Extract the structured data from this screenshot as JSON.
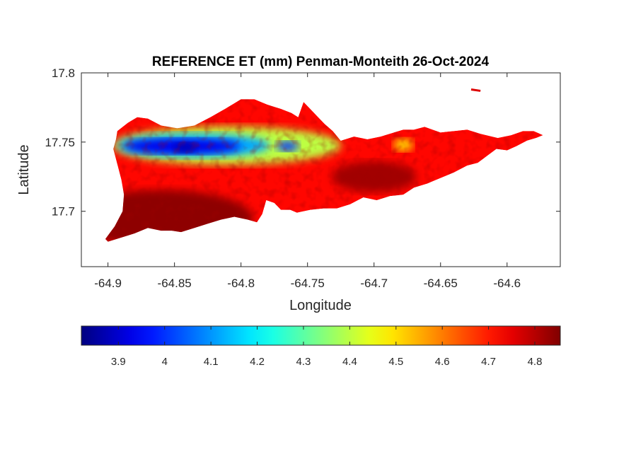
{
  "chart_data": {
    "type": "heatmap",
    "title": "REFERENCE ET (mm) Penman-Monteith 26-Oct-2024",
    "xlabel": "Longitude",
    "ylabel": "Latitude",
    "xlim": [
      -64.92,
      -64.56
    ],
    "ylim": [
      17.66,
      17.8
    ],
    "xticks": [
      -64.9,
      -64.85,
      -64.8,
      -64.75,
      -64.7,
      -64.65,
      -64.6
    ],
    "xtick_labels": [
      "-64.9",
      "-64.85",
      "-64.8",
      "-64.75",
      "-64.7",
      "-64.65",
      "-64.6"
    ],
    "yticks": [
      17.7,
      17.75,
      17.8
    ],
    "ytick_labels": [
      "17.7",
      "17.75",
      "17.8"
    ],
    "grid": false,
    "colormap": "jet",
    "colorbar": {
      "location": "bottom",
      "range": [
        3.82,
        4.855
      ],
      "ticks": [
        3.9,
        4.0,
        4.1,
        4.2,
        4.3,
        4.4,
        4.5,
        4.6,
        4.7,
        4.8
      ],
      "tick_labels": [
        "3.9",
        "4",
        "4.1",
        "4.2",
        "4.3",
        "4.4",
        "4.5",
        "4.6",
        "4.7",
        "4.8"
      ]
    },
    "island_outline": [
      [
        -64.893,
        17.758
      ],
      [
        -64.885,
        17.764
      ],
      [
        -64.878,
        17.768
      ],
      [
        -64.87,
        17.767
      ],
      [
        -64.86,
        17.762
      ],
      [
        -64.848,
        17.76
      ],
      [
        -64.835,
        17.762
      ],
      [
        -64.823,
        17.768
      ],
      [
        -64.812,
        17.774
      ],
      [
        -64.8,
        17.781
      ],
      [
        -64.79,
        17.781
      ],
      [
        -64.78,
        17.777
      ],
      [
        -64.77,
        17.774
      ],
      [
        -64.762,
        17.771
      ],
      [
        -64.757,
        17.768
      ],
      [
        -64.753,
        17.779
      ],
      [
        -64.748,
        17.774
      ],
      [
        -64.743,
        17.769
      ],
      [
        -64.737,
        17.763
      ],
      [
        -64.731,
        17.758
      ],
      [
        -64.725,
        17.751
      ],
      [
        -64.715,
        17.754
      ],
      [
        -64.705,
        17.752
      ],
      [
        -64.695,
        17.754
      ],
      [
        -64.685,
        17.757
      ],
      [
        -64.678,
        17.759
      ],
      [
        -64.67,
        17.759
      ],
      [
        -64.662,
        17.761
      ],
      [
        -64.65,
        17.757
      ],
      [
        -64.64,
        17.758
      ],
      [
        -64.63,
        17.759
      ],
      [
        -64.62,
        17.756
      ],
      [
        -64.607,
        17.753
      ],
      [
        -64.597,
        17.755
      ],
      [
        -64.588,
        17.758
      ],
      [
        -64.58,
        17.758
      ],
      [
        -64.573,
        17.755
      ],
      [
        -64.578,
        17.753
      ],
      [
        -64.585,
        17.751
      ],
      [
        -64.593,
        17.747
      ],
      [
        -64.6,
        17.744
      ],
      [
        -64.608,
        17.745
      ],
      [
        -64.615,
        17.74
      ],
      [
        -64.622,
        17.735
      ],
      [
        -64.63,
        17.733
      ],
      [
        -64.64,
        17.728
      ],
      [
        -64.65,
        17.724
      ],
      [
        -64.66,
        17.72
      ],
      [
        -64.67,
        17.717
      ],
      [
        -64.678,
        17.712
      ],
      [
        -64.688,
        17.711
      ],
      [
        -64.698,
        17.708
      ],
      [
        -64.708,
        17.71
      ],
      [
        -64.718,
        17.705
      ],
      [
        -64.728,
        17.702
      ],
      [
        -64.738,
        17.702
      ],
      [
        -64.748,
        17.701
      ],
      [
        -64.758,
        17.699
      ],
      [
        -64.763,
        17.701
      ],
      [
        -64.77,
        17.701
      ],
      [
        -64.775,
        17.706
      ],
      [
        -64.781,
        17.708
      ],
      [
        -64.784,
        17.698
      ],
      [
        -64.788,
        17.692
      ],
      [
        -64.795,
        17.694
      ],
      [
        -64.805,
        17.696
      ],
      [
        -64.815,
        17.694
      ],
      [
        -64.825,
        17.691
      ],
      [
        -64.835,
        17.688
      ],
      [
        -64.845,
        17.685
      ],
      [
        -64.852,
        17.686
      ],
      [
        -64.86,
        17.686
      ],
      [
        -64.87,
        17.688
      ],
      [
        -64.88,
        17.684
      ],
      [
        -64.89,
        17.681
      ],
      [
        -64.9,
        17.678
      ],
      [
        -64.902,
        17.68
      ],
      [
        -64.895,
        17.689
      ],
      [
        -64.889,
        17.7
      ],
      [
        -64.888,
        17.712
      ],
      [
        -64.89,
        17.723
      ],
      [
        -64.893,
        17.734
      ],
      [
        -64.896,
        17.745
      ],
      [
        -64.894,
        17.752
      ]
    ],
    "islet": [
      [
        -64.627,
        17.788
      ],
      [
        -64.62,
        17.787
      ]
    ],
    "field_regions": [
      {
        "shape": "band",
        "x_range": [
          -64.896,
          -64.725
        ],
        "center_lat": 17.7475,
        "value": 4.4,
        "note": ""
      },
      {
        "shape": "band",
        "x_range": [
          -64.893,
          -64.778
        ],
        "center_lat": 17.7475,
        "value": 4.12
      },
      {
        "shape": "band",
        "x_range": [
          -64.888,
          -64.8
        ],
        "center_lat": 17.747,
        "value": 3.93
      },
      {
        "shape": "spot",
        "center": [
          -64.765,
          17.747
        ],
        "value": 4.0
      },
      {
        "shape": "spot",
        "center": [
          -64.842,
          17.746
        ],
        "value": 3.87
      },
      {
        "shape": "spot",
        "center": [
          -64.678,
          17.748
        ],
        "value": 4.5
      }
    ],
    "background_value": 4.72
  }
}
